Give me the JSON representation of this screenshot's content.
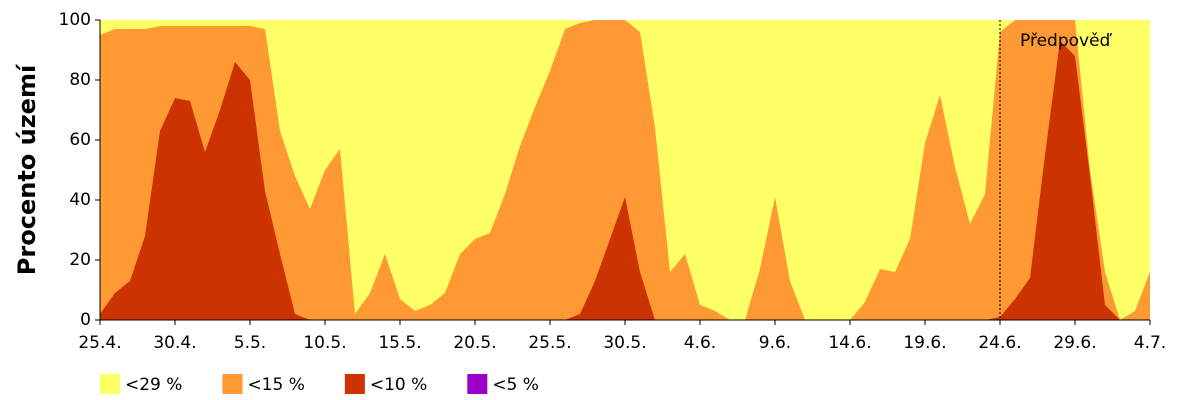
{
  "chart_data": {
    "type": "area",
    "y_label": "Procento území",
    "categories": [
      "25.4.",
      null,
      null,
      null,
      null,
      "30.4.",
      null,
      null,
      null,
      null,
      "5.5.",
      null,
      null,
      null,
      null,
      "10.5.",
      null,
      null,
      null,
      null,
      "15.5.",
      null,
      null,
      null,
      null,
      "20.5.",
      null,
      null,
      null,
      null,
      "25.5.",
      null,
      null,
      null,
      null,
      "30.5.",
      null,
      null,
      null,
      null,
      "4.6.",
      null,
      null,
      null,
      null,
      "9.6.",
      null,
      null,
      null,
      null,
      "14.6.",
      null,
      null,
      null,
      null,
      "19.6.",
      null,
      null,
      null,
      null,
      "24.6.",
      null,
      null,
      null,
      null,
      "29.6.",
      null,
      null,
      null,
      null,
      "4.7."
    ],
    "series": [
      {
        "name": "<29 %",
        "color": "#ffff66",
        "values": [
          100,
          100,
          100,
          100,
          100,
          100,
          100,
          100,
          100,
          100,
          100,
          100,
          100,
          100,
          100,
          100,
          100,
          100,
          100,
          100,
          100,
          100,
          100,
          100,
          100,
          100,
          100,
          100,
          100,
          100,
          100,
          100,
          100,
          100,
          100,
          100,
          100,
          100,
          100,
          100,
          100,
          100,
          100,
          100,
          100,
          100,
          100,
          100,
          100,
          100,
          100,
          100,
          100,
          100,
          100,
          100,
          100,
          100,
          100,
          100,
          100,
          100,
          100,
          100,
          100,
          100,
          100,
          100,
          100,
          100,
          100
        ]
      },
      {
        "name": "<15 %",
        "color": "#ff9933",
        "values": [
          95,
          97,
          97,
          97,
          98,
          98,
          98,
          98,
          98,
          98,
          98,
          97,
          63,
          48,
          37,
          50,
          57,
          2,
          9,
          22,
          7,
          3,
          5,
          9,
          22,
          27,
          29,
          42,
          58,
          71,
          83,
          97,
          99,
          100,
          100,
          100,
          96,
          64,
          16,
          22,
          5,
          3,
          0,
          0,
          17,
          41,
          13,
          0,
          0,
          0,
          0,
          6,
          17,
          16,
          27,
          59,
          75,
          51,
          32,
          42,
          96,
          100,
          100,
          100,
          100,
          100,
          50,
          16,
          0,
          3,
          16
        ]
      },
      {
        "name": "<10 %",
        "color": "#cc3300",
        "values": [
          2,
          9,
          13,
          28,
          63,
          74,
          73,
          56,
          70,
          86,
          80,
          43,
          22,
          2,
          0,
          0,
          0,
          0,
          0,
          0,
          0,
          0,
          0,
          0,
          0,
          0,
          0,
          0,
          0,
          0,
          0,
          0,
          2,
          13,
          27,
          41,
          16,
          0,
          0,
          0,
          0,
          0,
          0,
          0,
          0,
          0,
          0,
          0,
          0,
          0,
          0,
          0,
          0,
          0,
          0,
          0,
          0,
          0,
          0,
          0,
          1,
          7,
          14,
          55,
          93,
          88,
          48,
          5,
          0,
          0,
          0
        ]
      },
      {
        "name": "<5 %",
        "color": "#9900cc",
        "values": [
          0,
          0,
          0,
          0,
          0,
          0,
          0,
          0,
          0,
          0,
          0,
          0,
          0,
          0,
          0,
          0,
          0,
          0,
          0,
          0,
          0,
          0,
          0,
          0,
          0,
          0,
          0,
          0,
          0,
          0,
          0,
          0,
          0,
          0,
          0,
          0,
          0,
          0,
          0,
          0,
          0,
          0,
          0,
          0,
          0,
          0,
          0,
          0,
          0,
          0,
          0,
          0,
          0,
          0,
          0,
          0,
          0,
          0,
          0,
          0,
          0,
          0,
          0,
          0,
          0,
          0,
          0,
          0,
          0,
          0,
          0
        ]
      }
    ],
    "ylim": [
      0,
      100
    ],
    "yticks": [
      0,
      20,
      40,
      60,
      80,
      100
    ],
    "forecast_start": "24.6.",
    "forecast_label": "Předpověď",
    "legend": "bottom"
  }
}
